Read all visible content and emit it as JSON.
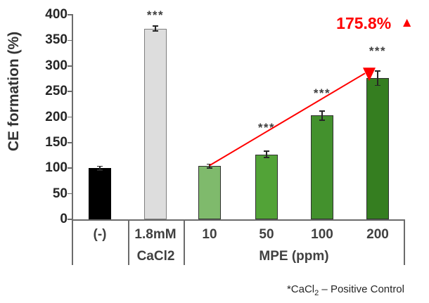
{
  "chart_data": {
    "type": "bar",
    "title": "",
    "ylabel": "CE formation (%)",
    "xlabel": "",
    "ylim": [
      0,
      400
    ],
    "y_ticks": [
      0,
      50,
      100,
      150,
      200,
      250,
      300,
      350,
      400
    ],
    "grid": false,
    "legend": "none",
    "categories": [
      "(-)",
      "CaCl2 1.8mM",
      "MPE 10 ppm",
      "MPE 50 ppm",
      "MPE 100 ppm",
      "MPE 200 ppm"
    ],
    "values": [
      100,
      373,
      104,
      127,
      203,
      276
    ],
    "errors": [
      4,
      5,
      4,
      6,
      9,
      14
    ],
    "significance": [
      "",
      "***",
      "",
      "***",
      "***",
      "***"
    ],
    "bar_colors": [
      "#000000",
      "#dddddd",
      "#7fba6c",
      "#52a337",
      "#43912d",
      "#357e20"
    ],
    "bar_border_colors": [
      "#000000",
      "#7f7f7f",
      "#2f2f2f",
      "#2f2f2f",
      "#2f2f2f",
      "#2f2f2f"
    ],
    "x_axis": {
      "row1": [
        "(-)",
        "1.8mM",
        "10",
        "50",
        "100",
        "200"
      ],
      "group2_line2": "CaCl2",
      "group3_line2": "MPE (ppm)"
    },
    "trend_arrow": {
      "from_category": "MPE 10 ppm",
      "to_category": "MPE 200 ppm",
      "color": "#ff0000",
      "meaning": "increase from 10 ppm to 200 ppm"
    },
    "annotation": {
      "text": "175.8%",
      "symbol": "▲",
      "color": "#ff0000"
    },
    "footnote": {
      "pre": "*CaCl",
      "sub": "2",
      "post": " – Positive Control"
    }
  }
}
